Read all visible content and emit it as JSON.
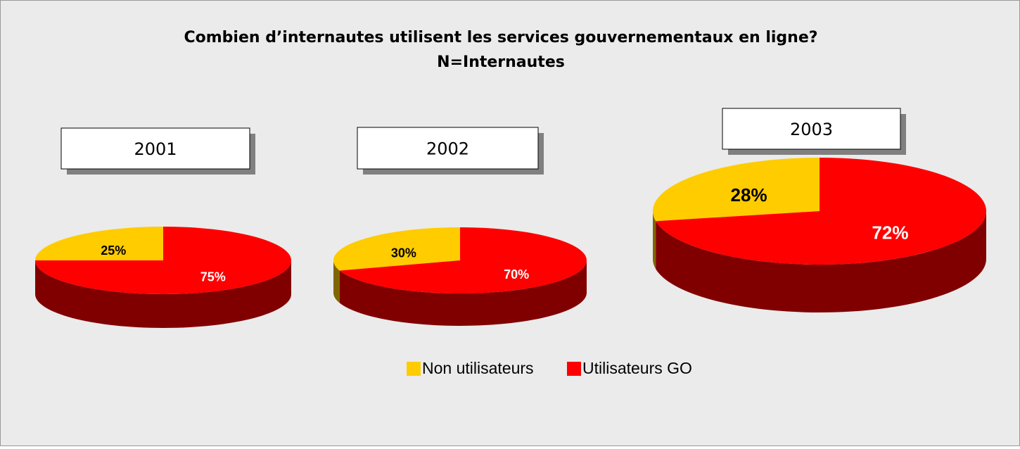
{
  "title": "Combien d’internautes utilisent les services gouvernementaux en ligne?",
  "subtitle": "N=Internautes",
  "categories": [
    "Non utilisateurs",
    "Utilisateurs GO"
  ],
  "colors": [
    "#ffcc00",
    "#ff0000"
  ],
  "chart_data": [
    {
      "type": "pie",
      "title": "2001",
      "values": [
        25,
        75
      ],
      "value_labels": [
        "25%",
        "75%"
      ]
    },
    {
      "type": "pie",
      "title": "2002",
      "values": [
        30,
        70
      ],
      "value_labels": [
        "30%",
        "70%"
      ]
    },
    {
      "type": "pie",
      "title": "2003",
      "values": [
        28,
        72
      ],
      "value_labels": [
        "28%",
        "72%"
      ]
    }
  ]
}
